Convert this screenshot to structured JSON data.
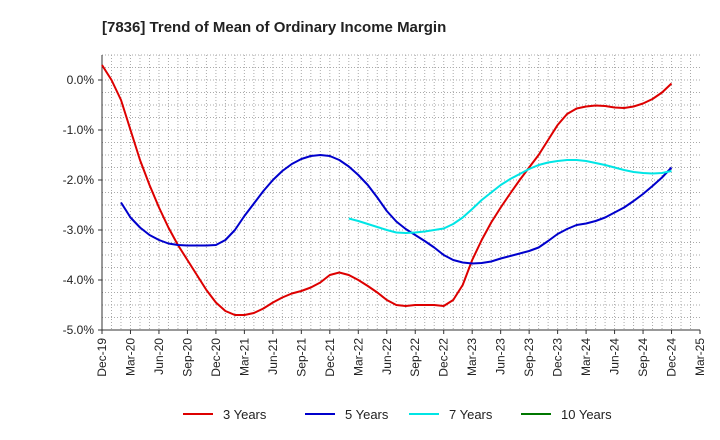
{
  "chart_data": {
    "type": "line",
    "title": "[7836]  Trend of Mean of Ordinary Income Margin",
    "xlabel": "",
    "ylabel": "",
    "ylim": [
      -5.0,
      0.5
    ],
    "y_ticks": [
      0.0,
      -1.0,
      -2.0,
      -3.0,
      -4.0,
      -5.0
    ],
    "y_tick_labels": [
      "0.0%",
      "-1.0%",
      "-2.0%",
      "-3.0%",
      "-4.0%",
      "-5.0%"
    ],
    "x_tick_labels": [
      "Dec-19",
      "Mar-20",
      "Jun-20",
      "Sep-20",
      "Dec-20",
      "Mar-21",
      "Jun-21",
      "Sep-21",
      "Dec-21",
      "Mar-22",
      "Jun-22",
      "Sep-22",
      "Dec-22",
      "Mar-23",
      "Jun-23",
      "Sep-23",
      "Dec-23",
      "Mar-24",
      "Jun-24",
      "Sep-24",
      "Dec-24",
      "Mar-25"
    ],
    "grid": true,
    "legend_position": "bottom",
    "series": [
      {
        "name": "3 Years",
        "color": "#dd0000",
        "points": [
          [
            "Dec-19",
            0.3
          ],
          [
            "Jan-20",
            0.0
          ],
          [
            "Feb-20",
            -0.4
          ],
          [
            "Mar-20",
            -1.0
          ],
          [
            "Apr-20",
            -1.6
          ],
          [
            "May-20",
            -2.1
          ],
          [
            "Jun-20",
            -2.55
          ],
          [
            "Jul-20",
            -2.95
          ],
          [
            "Aug-20",
            -3.3
          ],
          [
            "Sep-20",
            -3.6
          ],
          [
            "Oct-20",
            -3.9
          ],
          [
            "Nov-20",
            -4.2
          ],
          [
            "Dec-20",
            -4.45
          ],
          [
            "Jan-21",
            -4.62
          ],
          [
            "Feb-21",
            -4.7
          ],
          [
            "Mar-21",
            -4.7
          ],
          [
            "Apr-21",
            -4.66
          ],
          [
            "May-21",
            -4.57
          ],
          [
            "Jun-21",
            -4.45
          ],
          [
            "Jul-21",
            -4.35
          ],
          [
            "Aug-21",
            -4.27
          ],
          [
            "Sep-21",
            -4.22
          ],
          [
            "Oct-21",
            -4.15
          ],
          [
            "Nov-21",
            -4.05
          ],
          [
            "Dec-21",
            -3.9
          ],
          [
            "Jan-22",
            -3.85
          ],
          [
            "Feb-22",
            -3.9
          ],
          [
            "Mar-22",
            -4.0
          ],
          [
            "Apr-22",
            -4.12
          ],
          [
            "May-22",
            -4.25
          ],
          [
            "Jun-22",
            -4.4
          ],
          [
            "Jul-22",
            -4.5
          ],
          [
            "Aug-22",
            -4.52
          ],
          [
            "Sep-22",
            -4.5
          ],
          [
            "Oct-22",
            -4.5
          ],
          [
            "Nov-22",
            -4.5
          ],
          [
            "Dec-22",
            -4.52
          ],
          [
            "Jan-23",
            -4.4
          ],
          [
            "Feb-23",
            -4.1
          ],
          [
            "Mar-23",
            -3.6
          ],
          [
            "Apr-23",
            -3.2
          ],
          [
            "May-23",
            -2.85
          ],
          [
            "Jun-23",
            -2.55
          ],
          [
            "Jul-23",
            -2.27
          ],
          [
            "Aug-23",
            -2.0
          ],
          [
            "Sep-23",
            -1.75
          ],
          [
            "Oct-23",
            -1.5
          ],
          [
            "Nov-23",
            -1.2
          ],
          [
            "Dec-23",
            -0.9
          ],
          [
            "Jan-24",
            -0.68
          ],
          [
            "Feb-24",
            -0.57
          ],
          [
            "Mar-24",
            -0.53
          ],
          [
            "Apr-24",
            -0.51
          ],
          [
            "May-24",
            -0.52
          ],
          [
            "Jun-24",
            -0.55
          ],
          [
            "Jul-24",
            -0.56
          ],
          [
            "Aug-24",
            -0.53
          ],
          [
            "Sep-24",
            -0.47
          ],
          [
            "Oct-24",
            -0.38
          ],
          [
            "Nov-24",
            -0.25
          ],
          [
            "Dec-24",
            -0.07
          ]
        ]
      },
      {
        "name": "5 Years",
        "color": "#0000cc",
        "points": [
          [
            "Feb-20",
            -2.45
          ],
          [
            "Mar-20",
            -2.75
          ],
          [
            "Apr-20",
            -2.95
          ],
          [
            "May-20",
            -3.1
          ],
          [
            "Jun-20",
            -3.2
          ],
          [
            "Jul-20",
            -3.27
          ],
          [
            "Aug-20",
            -3.3
          ],
          [
            "Sep-20",
            -3.31
          ],
          [
            "Oct-20",
            -3.31
          ],
          [
            "Nov-20",
            -3.31
          ],
          [
            "Dec-20",
            -3.3
          ],
          [
            "Jan-21",
            -3.2
          ],
          [
            "Feb-21",
            -3.0
          ],
          [
            "Mar-21",
            -2.72
          ],
          [
            "Apr-21",
            -2.47
          ],
          [
            "May-21",
            -2.22
          ],
          [
            "Jun-21",
            -2.0
          ],
          [
            "Jul-21",
            -1.82
          ],
          [
            "Aug-21",
            -1.68
          ],
          [
            "Sep-21",
            -1.58
          ],
          [
            "Oct-21",
            -1.52
          ],
          [
            "Nov-21",
            -1.5
          ],
          [
            "Dec-21",
            -1.52
          ],
          [
            "Jan-22",
            -1.6
          ],
          [
            "Feb-22",
            -1.73
          ],
          [
            "Mar-22",
            -1.9
          ],
          [
            "Apr-22",
            -2.1
          ],
          [
            "May-22",
            -2.35
          ],
          [
            "Jun-22",
            -2.62
          ],
          [
            "Jul-22",
            -2.83
          ],
          [
            "Aug-22",
            -2.98
          ],
          [
            "Sep-22",
            -3.1
          ],
          [
            "Oct-22",
            -3.22
          ],
          [
            "Nov-22",
            -3.35
          ],
          [
            "Dec-22",
            -3.5
          ],
          [
            "Jan-23",
            -3.6
          ],
          [
            "Feb-23",
            -3.65
          ],
          [
            "Mar-23",
            -3.67
          ],
          [
            "Apr-23",
            -3.66
          ],
          [
            "May-23",
            -3.63
          ],
          [
            "Jun-23",
            -3.57
          ],
          [
            "Jul-23",
            -3.52
          ],
          [
            "Aug-23",
            -3.47
          ],
          [
            "Sep-23",
            -3.42
          ],
          [
            "Oct-23",
            -3.35
          ],
          [
            "Nov-23",
            -3.22
          ],
          [
            "Dec-23",
            -3.08
          ],
          [
            "Jan-24",
            -2.98
          ],
          [
            "Feb-24",
            -2.9
          ],
          [
            "Mar-24",
            -2.87
          ],
          [
            "Apr-24",
            -2.82
          ],
          [
            "May-24",
            -2.75
          ],
          [
            "Jun-24",
            -2.65
          ],
          [
            "Jul-24",
            -2.55
          ],
          [
            "Aug-24",
            -2.42
          ],
          [
            "Sep-24",
            -2.28
          ],
          [
            "Oct-24",
            -2.12
          ],
          [
            "Nov-24",
            -1.95
          ],
          [
            "Dec-24",
            -1.75
          ]
        ]
      },
      {
        "name": "7 Years",
        "color": "#00e5e5",
        "points": [
          [
            "Feb-22",
            -2.77
          ],
          [
            "Mar-22",
            -2.82
          ],
          [
            "Apr-22",
            -2.88
          ],
          [
            "May-22",
            -2.94
          ],
          [
            "Jun-22",
            -3.0
          ],
          [
            "Jul-22",
            -3.05
          ],
          [
            "Aug-22",
            -3.06
          ],
          [
            "Sep-22",
            -3.05
          ],
          [
            "Oct-22",
            -3.03
          ],
          [
            "Nov-22",
            -3.0
          ],
          [
            "Dec-22",
            -2.97
          ],
          [
            "Jan-23",
            -2.88
          ],
          [
            "Feb-23",
            -2.75
          ],
          [
            "Mar-23",
            -2.58
          ],
          [
            "Apr-23",
            -2.4
          ],
          [
            "May-23",
            -2.25
          ],
          [
            "Jun-23",
            -2.1
          ],
          [
            "Jul-23",
            -1.98
          ],
          [
            "Aug-23",
            -1.88
          ],
          [
            "Sep-23",
            -1.78
          ],
          [
            "Oct-23",
            -1.7
          ],
          [
            "Nov-23",
            -1.65
          ],
          [
            "Dec-23",
            -1.62
          ],
          [
            "Jan-24",
            -1.6
          ],
          [
            "Feb-24",
            -1.6
          ],
          [
            "Mar-24",
            -1.62
          ],
          [
            "Apr-24",
            -1.66
          ],
          [
            "May-24",
            -1.7
          ],
          [
            "Jun-24",
            -1.75
          ],
          [
            "Jul-24",
            -1.8
          ],
          [
            "Aug-24",
            -1.84
          ],
          [
            "Sep-24",
            -1.86
          ],
          [
            "Oct-24",
            -1.87
          ],
          [
            "Nov-24",
            -1.86
          ],
          [
            "Dec-24",
            -1.82
          ]
        ]
      },
      {
        "name": "10 Years",
        "color": "#007700",
        "points": []
      }
    ]
  }
}
